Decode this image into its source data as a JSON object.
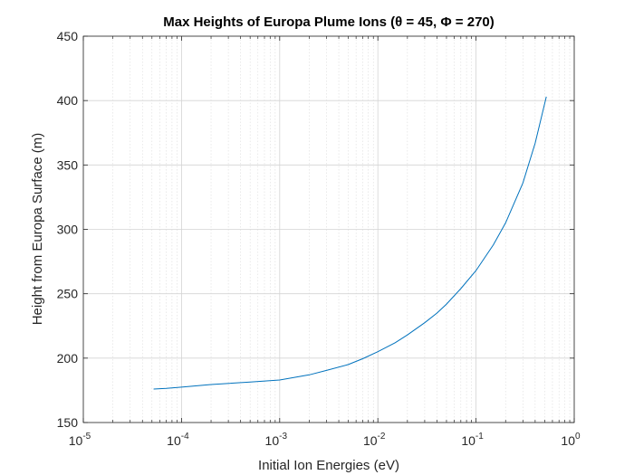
{
  "chart_data": {
    "type": "line",
    "title": "Max Heights of Europa Plume Ions (θ = 45, Φ = 270)",
    "xlabel": "Initial Ion Energies (eV)",
    "ylabel": "Height from Europa Surface (m)",
    "x_scale": "log",
    "xlim": [
      1e-05,
      1
    ],
    "ylim": [
      150,
      450
    ],
    "x_ticks": [
      {
        "value": 1e-05,
        "base": "10",
        "exp": "-5"
      },
      {
        "value": 0.0001,
        "base": "10",
        "exp": "-4"
      },
      {
        "value": 0.001,
        "base": "10",
        "exp": "-3"
      },
      {
        "value": 0.01,
        "base": "10",
        "exp": "-2"
      },
      {
        "value": 0.1,
        "base": "10",
        "exp": "-1"
      },
      {
        "value": 1,
        "base": "10",
        "exp": "0"
      }
    ],
    "y_ticks": [
      {
        "value": 150,
        "label": "150"
      },
      {
        "value": 200,
        "label": "200"
      },
      {
        "value": 250,
        "label": "250"
      },
      {
        "value": 300,
        "label": "300"
      },
      {
        "value": 350,
        "label": "350"
      },
      {
        "value": 400,
        "label": "400"
      },
      {
        "value": 450,
        "label": "450"
      }
    ],
    "grid": true,
    "minor_grid": true,
    "series": [
      {
        "color": "#0072BD",
        "x": [
          5.2e-05,
          7e-05,
          0.0001,
          0.0002,
          0.0005,
          0.001,
          0.002,
          0.003,
          0.005,
          0.007,
          0.01,
          0.015,
          0.02,
          0.03,
          0.04,
          0.05,
          0.07,
          0.1,
          0.15,
          0.2,
          0.3,
          0.4,
          0.52
        ],
        "y": [
          176,
          176.5,
          177.5,
          179.5,
          181.5,
          183,
          187,
          190.5,
          195,
          199.5,
          205,
          212,
          218,
          227.5,
          235,
          242,
          254,
          268,
          288,
          305,
          336,
          367,
          403
        ]
      }
    ]
  }
}
